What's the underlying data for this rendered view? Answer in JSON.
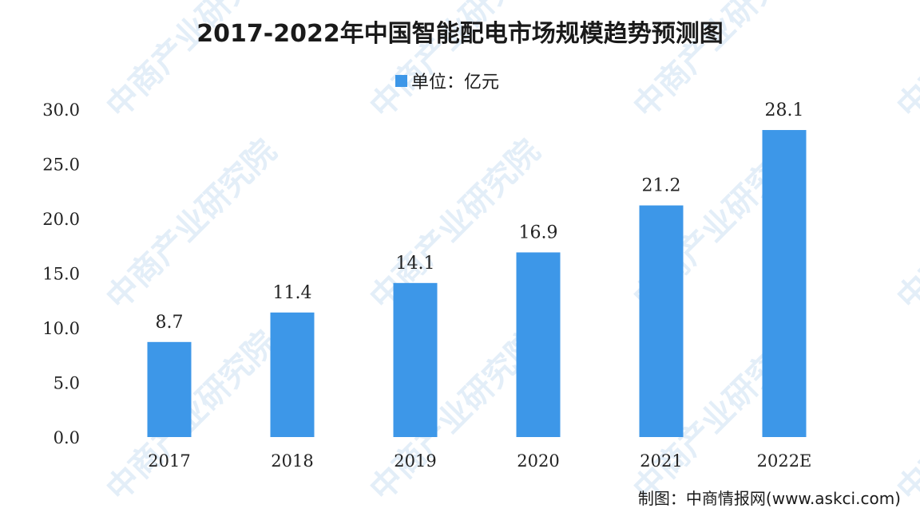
{
  "chart_data": {
    "type": "bar",
    "title": "2017-2022年中国智能配电市场规模趋势预测图",
    "legend": {
      "label": "单位：亿元",
      "color": "#3d97e8",
      "position": "top-center"
    },
    "categories": [
      "2017",
      "2018",
      "2019",
      "2020",
      "2021",
      "2022E"
    ],
    "series": [
      {
        "name": "单位：亿元",
        "values": [
          8.7,
          11.4,
          14.1,
          16.9,
          21.2,
          28.1
        ]
      }
    ],
    "data_labels": [
      "8.7",
      "11.4",
      "14.1",
      "16.9",
      "21.2",
      "28.1"
    ],
    "yticks": [
      "0.0",
      "5.0",
      "10.0",
      "15.0",
      "20.0",
      "25.0",
      "30.0"
    ],
    "ylim": [
      0,
      30
    ],
    "grid": false,
    "xlabel": "",
    "ylabel": ""
  },
  "source": "制图：中商情报网(www.askci.com)",
  "watermark": "中商产业研究院"
}
